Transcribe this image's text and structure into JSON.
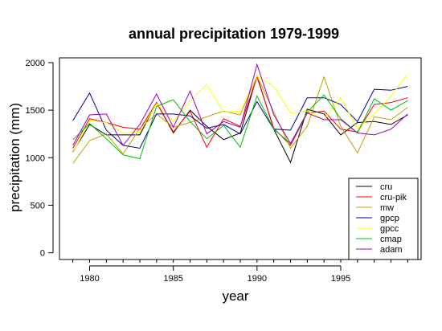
{
  "chart_data": {
    "type": "line",
    "title": "annual precipitation 1979-1999",
    "xlabel": "year",
    "ylabel": "precipitation (mm)",
    "x": [
      1979,
      1980,
      1981,
      1982,
      1983,
      1984,
      1985,
      1986,
      1987,
      1988,
      1989,
      1990,
      1991,
      1992,
      1993,
      1994,
      1995,
      1996,
      1997,
      1998,
      1999
    ],
    "xlim": [
      1978.2,
      1999.8
    ],
    "ylim": [
      -70,
      2050
    ],
    "xticks": [
      1980,
      1985,
      1990,
      1995
    ],
    "yticks": [
      0,
      500,
      1000,
      1500,
      2000
    ],
    "grid": false,
    "legend_position": "bottom-right",
    "series": [
      {
        "name": "cru",
        "color": "#000000",
        "values": [
          1060,
          1350,
          1240,
          1240,
          1240,
          1580,
          1260,
          1500,
          1330,
          1190,
          1260,
          1860,
          1300,
          950,
          1510,
          1460,
          1240,
          1370,
          1380,
          1350,
          1450
        ]
      },
      {
        "name": "cru-pik",
        "color": "#ff0000",
        "values": [
          1100,
          1410,
          1370,
          1320,
          1300,
          1580,
          1270,
          1490,
          1110,
          1410,
          1330,
          1850,
          1310,
          1130,
          1470,
          1490,
          1300,
          1270,
          1560,
          1580,
          1630
        ]
      },
      {
        "name": "mw",
        "color": "#c8a000",
        "values": [
          940,
          1180,
          1250,
          1040,
          1310,
          1460,
          1320,
          1370,
          1430,
          1490,
          1450,
          1860,
          1480,
          1100,
          1330,
          1850,
          1330,
          1050,
          1430,
          1400,
          1530
        ]
      },
      {
        "name": "gpcp",
        "color": "#00009a",
        "values": [
          1390,
          1680,
          1290,
          1130,
          1100,
          1460,
          1460,
          1440,
          1310,
          1350,
          1250,
          1590,
          1300,
          1290,
          1630,
          1630,
          1560,
          1380,
          1720,
          1710,
          1750
        ]
      },
      {
        "name": "gpcc",
        "color": "#ffff00",
        "values": [
          1050,
          1390,
          1370,
          1260,
          1270,
          1570,
          1380,
          1600,
          1770,
          1480,
          1490,
          1860,
          1750,
          1470,
          1490,
          1400,
          1630,
          1310,
          1460,
          1650,
          1880
        ]
      },
      {
        "name": "cmap",
        "color": "#00c000",
        "values": [
          1190,
          1360,
          1200,
          1030,
          990,
          1540,
          1610,
          1380,
          1200,
          1340,
          1110,
          1650,
          1300,
          1150,
          1480,
          1660,
          1410,
          1260,
          1620,
          1500,
          1600
        ]
      },
      {
        "name": "adam",
        "color": "#a000c0",
        "values": [
          1130,
          1450,
          1460,
          1130,
          1350,
          1670,
          1320,
          1700,
          1250,
          1380,
          1320,
          1980,
          1450,
          1150,
          1470,
          1400,
          1400,
          1260,
          1240,
          1300,
          1460
        ]
      }
    ]
  }
}
